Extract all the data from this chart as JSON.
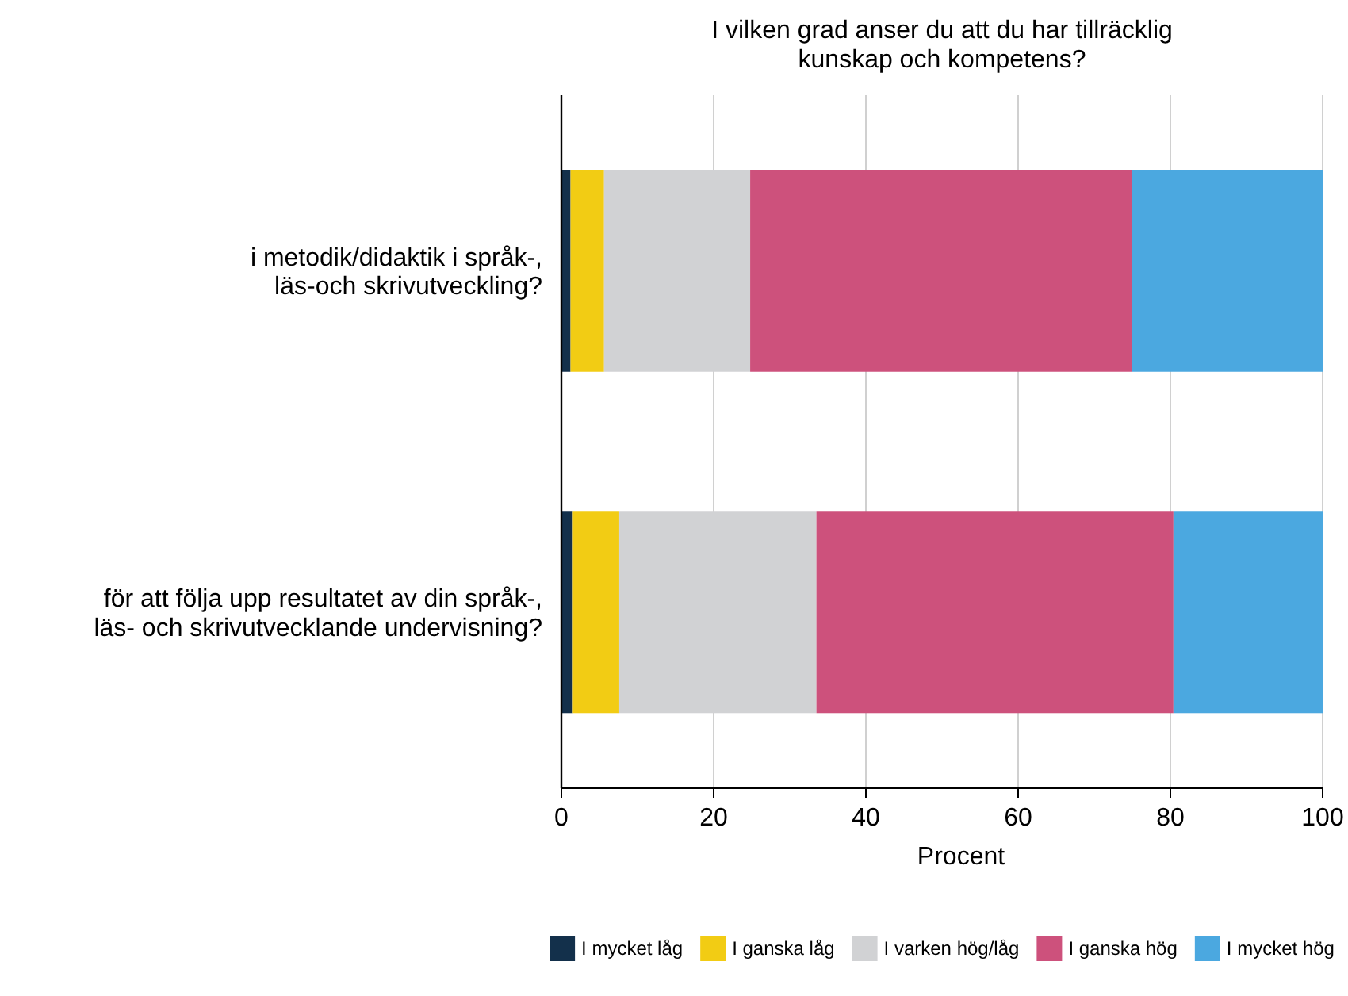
{
  "chart_data": {
    "type": "bar",
    "orientation": "horizontal",
    "stacked": true,
    "title": "I vilken grad anser du att du har tillräcklig kunskap och kompetens?",
    "xlabel": "Procent",
    "categories": [
      "i metodik/didaktik i språk-, läs-och skrivutveckling?",
      "för att följa upp resultatet av din språk-, läs- och skrivutvecklande undervisning?"
    ],
    "series": [
      {
        "name": "I mycket låg",
        "color": "#13304b",
        "values": [
          1.2,
          1.4
        ]
      },
      {
        "name": "I ganska låg",
        "color": "#f2cc14",
        "values": [
          4.4,
          6.2
        ]
      },
      {
        "name": "I varken hög/låg",
        "color": "#d1d2d4",
        "values": [
          19.2,
          25.9
        ]
      },
      {
        "name": "I ganska hög",
        "color": "#cd517c",
        "values": [
          50.2,
          46.9
        ]
      },
      {
        "name": "I mycket hög",
        "color": "#4ba8e0",
        "values": [
          25.0,
          19.6
        ]
      }
    ],
    "xlim": [
      0,
      100
    ],
    "xticks": [
      0,
      20,
      40,
      60,
      80,
      100
    ],
    "grid": "x",
    "legend": "bottom"
  }
}
